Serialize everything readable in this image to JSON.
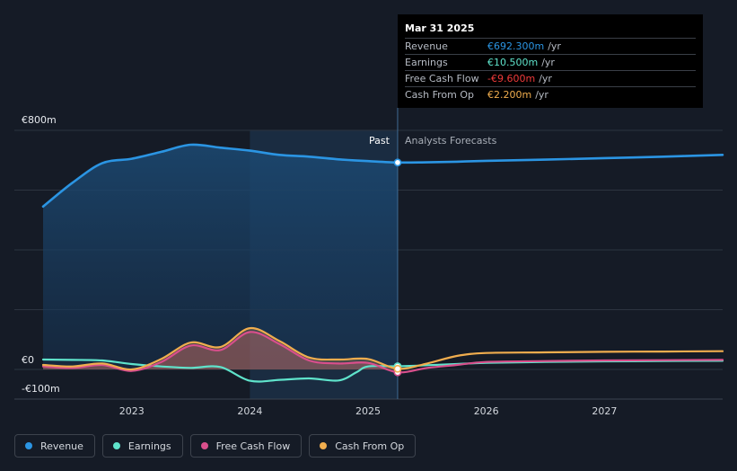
{
  "chart_data": {
    "type": "line",
    "y_unit": "€m",
    "ylim": [
      -100,
      800
    ],
    "y_tick_labels": [
      {
        "value": 800,
        "label": "€800m"
      },
      {
        "value": 0,
        "label": "€0"
      },
      {
        "value": -100,
        "label": "-€100m"
      }
    ],
    "y_gridlines": [
      800,
      600,
      400,
      200,
      0
    ],
    "xlim": [
      2022.25,
      2028.0
    ],
    "x_ticks": [
      {
        "value": 2023,
        "label": "2023"
      },
      {
        "value": 2024,
        "label": "2024"
      },
      {
        "value": 2025,
        "label": "2025"
      },
      {
        "value": 2026,
        "label": "2026"
      },
      {
        "value": 2027,
        "label": "2027"
      }
    ],
    "past_region": {
      "start": 2024.0,
      "end": 2025.25
    },
    "divider_x": 2025.25,
    "past_label": "Past",
    "forecast_label": "Analysts Forecasts",
    "series": [
      {
        "key": "revenue",
        "name": "Revenue",
        "color": "#2b95e3",
        "fill": true,
        "points": [
          [
            2022.25,
            545
          ],
          [
            2022.5,
            625
          ],
          [
            2022.75,
            690
          ],
          [
            2023.0,
            705
          ],
          [
            2023.25,
            728
          ],
          [
            2023.5,
            752
          ],
          [
            2023.75,
            742
          ],
          [
            2024.0,
            732
          ],
          [
            2024.25,
            718
          ],
          [
            2024.5,
            712
          ],
          [
            2024.75,
            703
          ],
          [
            2025.0,
            697
          ],
          [
            2025.25,
            692.3
          ],
          [
            2025.5,
            693
          ],
          [
            2025.75,
            695
          ],
          [
            2026.0,
            698
          ],
          [
            2026.5,
            702
          ],
          [
            2027.0,
            707
          ],
          [
            2027.5,
            712
          ],
          [
            2028.0,
            718
          ]
        ]
      },
      {
        "key": "earnings",
        "name": "Earnings",
        "color": "#5fe3cb",
        "fill": false,
        "points": [
          [
            2022.25,
            33
          ],
          [
            2022.5,
            32
          ],
          [
            2022.75,
            30
          ],
          [
            2023.0,
            18
          ],
          [
            2023.25,
            10
          ],
          [
            2023.5,
            5
          ],
          [
            2023.75,
            8
          ],
          [
            2024.0,
            -38
          ],
          [
            2024.25,
            -35
          ],
          [
            2024.5,
            -30
          ],
          [
            2024.75,
            -37
          ],
          [
            2024.9,
            -10
          ],
          [
            2025.0,
            10
          ],
          [
            2025.25,
            10.5
          ],
          [
            2025.5,
            14
          ],
          [
            2025.75,
            18
          ],
          [
            2026.0,
            22
          ],
          [
            2026.5,
            25
          ],
          [
            2027.0,
            27
          ],
          [
            2027.5,
            28
          ],
          [
            2028.0,
            29
          ]
        ]
      },
      {
        "key": "free_cash_flow",
        "name": "Free Cash Flow",
        "color": "#d94f8c",
        "fill": true,
        "points": [
          [
            2022.25,
            10
          ],
          [
            2022.5,
            5
          ],
          [
            2022.75,
            15
          ],
          [
            2023.0,
            -5
          ],
          [
            2023.25,
            25
          ],
          [
            2023.5,
            80
          ],
          [
            2023.75,
            65
          ],
          [
            2024.0,
            125
          ],
          [
            2024.25,
            85
          ],
          [
            2024.5,
            30
          ],
          [
            2024.75,
            20
          ],
          [
            2025.0,
            22
          ],
          [
            2025.25,
            -9.6
          ],
          [
            2025.5,
            5
          ],
          [
            2025.75,
            15
          ],
          [
            2026.0,
            25
          ],
          [
            2026.5,
            28
          ],
          [
            2027.0,
            30
          ],
          [
            2027.5,
            31
          ],
          [
            2028.0,
            32
          ]
        ]
      },
      {
        "key": "cash_from_op",
        "name": "Cash From Op",
        "color": "#f0ad4e",
        "fill": true,
        "points": [
          [
            2022.25,
            15
          ],
          [
            2022.5,
            10
          ],
          [
            2022.75,
            20
          ],
          [
            2023.0,
            0
          ],
          [
            2023.25,
            35
          ],
          [
            2023.5,
            90
          ],
          [
            2023.75,
            75
          ],
          [
            2024.0,
            138
          ],
          [
            2024.25,
            95
          ],
          [
            2024.5,
            40
          ],
          [
            2024.75,
            33
          ],
          [
            2025.0,
            35
          ],
          [
            2025.25,
            2.2
          ],
          [
            2025.5,
            20
          ],
          [
            2025.75,
            45
          ],
          [
            2026.0,
            55
          ],
          [
            2026.5,
            57
          ],
          [
            2027.0,
            59
          ],
          [
            2027.5,
            60
          ],
          [
            2028.0,
            61
          ]
        ]
      }
    ]
  },
  "tooltip": {
    "date": "Mar 31 2025",
    "rows": [
      {
        "name": "Revenue",
        "value": "€692.300m",
        "unit": "/yr",
        "color": "#2b95e3"
      },
      {
        "name": "Earnings",
        "value": "€10.500m",
        "unit": "/yr",
        "color": "#5fe3cb"
      },
      {
        "name": "Free Cash Flow",
        "value": "-€9.600m",
        "unit": "/yr",
        "color": "#f03a3a"
      },
      {
        "name": "Cash From Op",
        "value": "€2.200m",
        "unit": "/yr",
        "color": "#f0ad4e"
      }
    ]
  },
  "legend": [
    {
      "label": "Revenue",
      "color": "#2b95e3"
    },
    {
      "label": "Earnings",
      "color": "#5fe3cb"
    },
    {
      "label": "Free Cash Flow",
      "color": "#d94f8c"
    },
    {
      "label": "Cash From Op",
      "color": "#f0ad4e"
    }
  ]
}
